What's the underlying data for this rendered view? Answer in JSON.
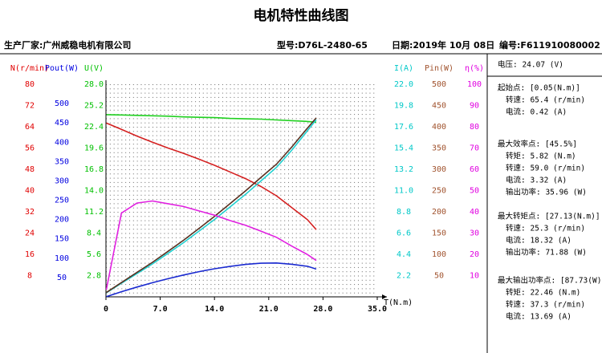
{
  "header": {
    "title": "电机特性曲线图",
    "maker": "生产厂家:广州威稳电机有限公司",
    "model": "型号:D76L-2480-65",
    "date": "日期:2019年 10月 08日",
    "serial": "编号:F611910080002"
  },
  "chart_data": {
    "type": "line",
    "xlabel": "T(N.m)",
    "xlim": [
      0,
      35
    ],
    "xticks": [
      0,
      {
        "value": 7,
        "label": "7.0"
      },
      {
        "value": 14,
        "label": "14.0"
      },
      {
        "value": 21,
        "label": "21.0"
      },
      {
        "value": 28,
        "label": "28.0"
      },
      {
        "value": 35,
        "label": "35.0"
      }
    ],
    "x": [
      0.05,
      2,
      4,
      6,
      8,
      10,
      12,
      14,
      16,
      18,
      20,
      22,
      24,
      26,
      27.13
    ],
    "series": [
      {
        "name": "N(r/min)",
        "side": "left",
        "color": "#e00000",
        "line_color": "#d42020",
        "ylim": [
          0,
          80
        ],
        "yticks": [
          8,
          16,
          24,
          32,
          40,
          48,
          56,
          64,
          72,
          80
        ],
        "values": [
          65.4,
          63,
          60.5,
          58.2,
          56,
          54,
          51.8,
          49.5,
          47,
          44.5,
          41.5,
          38,
          33.5,
          29,
          25.3
        ]
      },
      {
        "name": "Pout(W)",
        "side": "left",
        "color": "#0000e0",
        "line_color": "#1a2ad0",
        "ylim": [
          0,
          550
        ],
        "yticks": [
          50,
          100,
          150,
          200,
          250,
          300,
          350,
          400,
          450,
          500
        ],
        "values": [
          0.34,
          13.2,
          25.3,
          36.6,
          46.9,
          56.5,
          65.1,
          72.6,
          78.7,
          83.9,
          86.9,
          87.5,
          84.2,
          79,
          71.88
        ]
      },
      {
        "name": "U(V)",
        "side": "left",
        "color": "#00c000",
        "line_color": "#20d020",
        "ylim": [
          0,
          28
        ],
        "yticks": [
          2.8,
          5.6,
          8.4,
          11.2,
          {
            "value": 14,
            "label": "14.0"
          },
          16.8,
          19.6,
          22.4,
          25.2,
          {
            "value": 28,
            "label": "28.0"
          }
        ],
        "values": [
          24,
          23.95,
          23.9,
          23.85,
          23.8,
          23.7,
          23.65,
          23.6,
          23.5,
          23.45,
          23.4,
          23.3,
          23.2,
          23.1,
          23
        ]
      },
      {
        "name": "I(A)",
        "side": "right",
        "color": "#00c8c8",
        "line_color": "#20d0d0",
        "ylim": [
          0,
          22
        ],
        "yticks": [
          2.2,
          4.4,
          6.6,
          8.8,
          {
            "value": 11,
            "label": "11.0"
          },
          13.2,
          15.4,
          17.6,
          19.8,
          {
            "value": 22,
            "label": "22.0"
          }
        ],
        "values": [
          0.42,
          1.4,
          2.4,
          3.4,
          4.5,
          5.6,
          6.8,
          8,
          9.3,
          10.6,
          12,
          13.4,
          15.2,
          17.2,
          18.32
        ]
      },
      {
        "name": "Pin(W)",
        "side": "right",
        "color": "#a0522d",
        "line_color": "#5a3020",
        "ylim": [
          0,
          500
        ],
        "yticks": [
          50,
          100,
          150,
          200,
          250,
          300,
          350,
          400,
          450,
          500
        ],
        "values": [
          10.1,
          33.5,
          57.4,
          81.1,
          107,
          133,
          161,
          189,
          219,
          249,
          281,
          312,
          353,
          397,
          421
        ]
      },
      {
        "name": "η(%)",
        "side": "right",
        "color": "#e000e0",
        "line_color": "#e020e0",
        "ylim": [
          0,
          100
        ],
        "yticks": [
          10,
          20,
          30,
          40,
          50,
          60,
          70,
          80,
          90,
          100
        ],
        "values": [
          3.4,
          39.4,
          44.1,
          45.1,
          43.8,
          42.5,
          40.4,
          38.4,
          35.9,
          33.7,
          30.9,
          28,
          23.8,
          19.9,
          17.1
        ]
      }
    ]
  },
  "panel": {
    "voltage": "电压:   24.07 (V)",
    "sections": [
      {
        "title": "起始点: [0.05(N.m)]",
        "lines": [
          "转速: 65.4 (r/min)",
          "电流: 0.42 (A)"
        ]
      },
      {
        "title": "最大效率点: [45.5%]",
        "lines": [
          "转矩: 5.82 (N.m)",
          "转速: 59.0 (r/min)",
          "电流: 3.32 (A)",
          "输出功率: 35.96 (W)"
        ]
      },
      {
        "title": "最大转矩点: [27.13(N.m)]",
        "lines": [
          "转速: 25.3 (r/min)",
          "电流: 18.32 (A)",
          "输出功率: 71.88 (W)"
        ]
      },
      {
        "title": "最大输出功率点: [87.73(W)]",
        "lines": [
          "转矩: 22.46 (N.m)",
          "转速: 37.3 (r/min)",
          "电流: 13.69 (A)"
        ]
      }
    ]
  }
}
